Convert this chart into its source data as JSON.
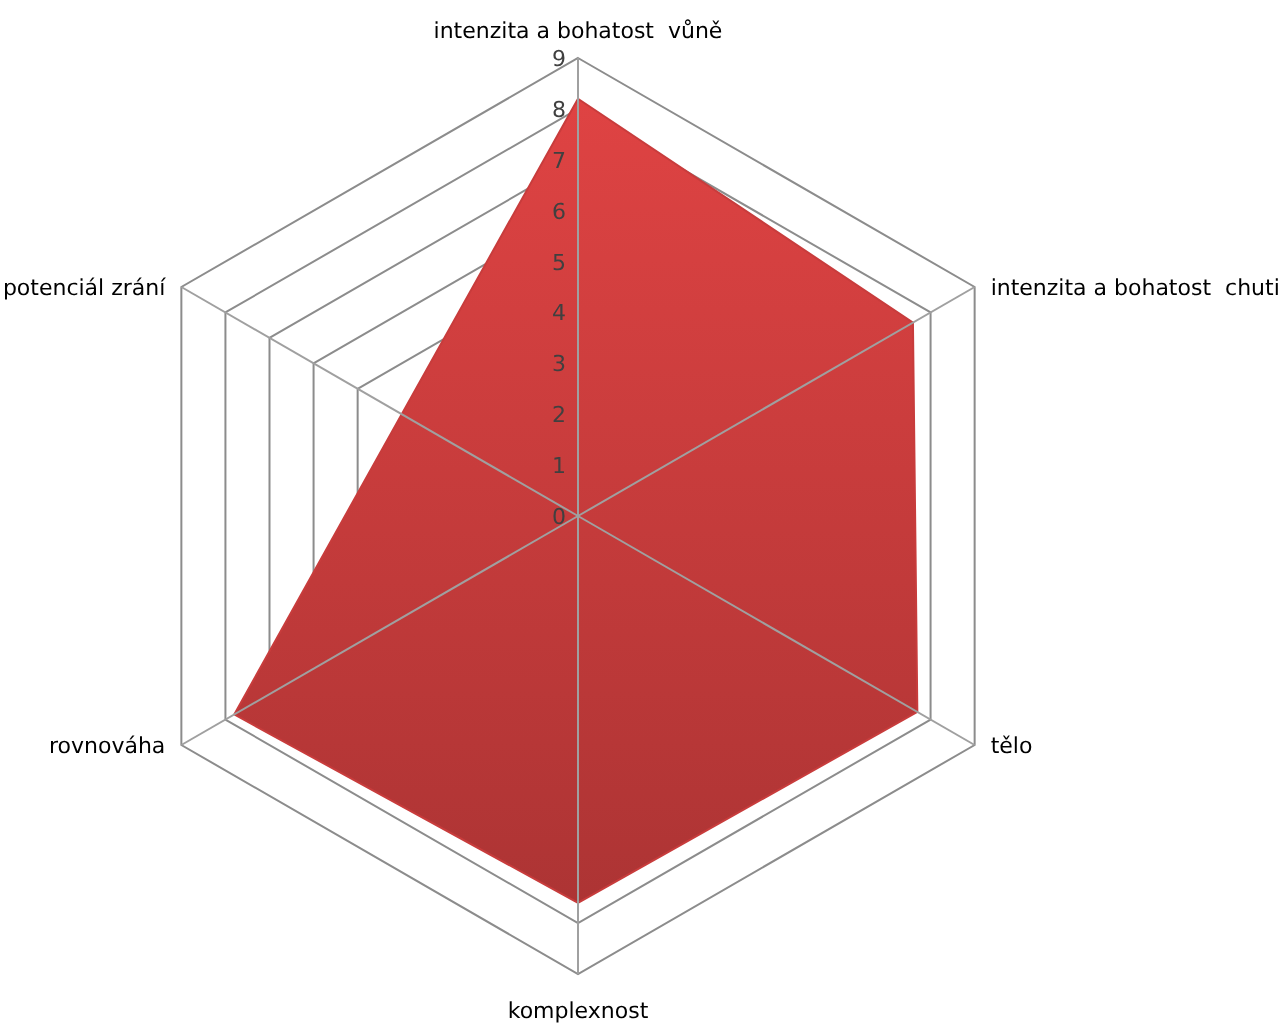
{
  "chart_data": {
    "type": "radar",
    "categories": [
      "intenzita a bohatost  vůně",
      "intenzita a bohatost  chuti",
      "tělo",
      "komplexnost",
      "rovnováha",
      "potenciál zrání"
    ],
    "series": [
      {
        "color": "#c83c3c",
        "values": [
          8.2,
          7.6,
          7.7,
          7.6,
          7.8,
          4.0
        ]
      }
    ],
    "ylim": [
      0,
      9
    ],
    "yticks": [
      0,
      1,
      2,
      3,
      4,
      5,
      6,
      7,
      8,
      9
    ],
    "grid": true
  }
}
